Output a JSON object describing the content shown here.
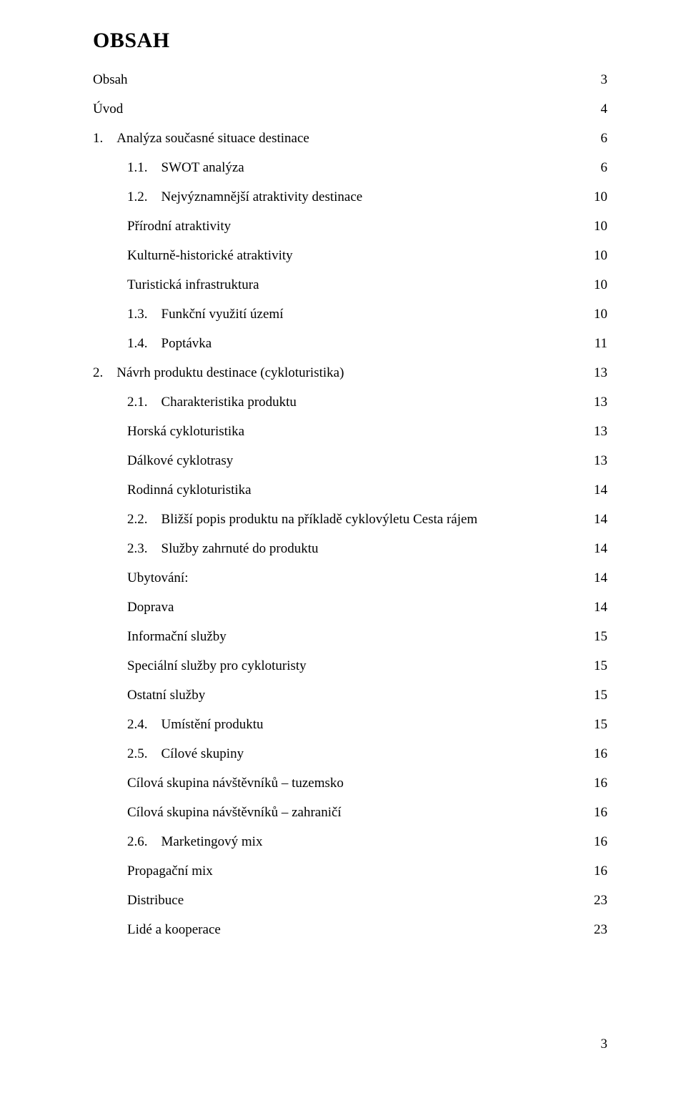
{
  "title": "OBSAH",
  "page_number": "3",
  "styling": {
    "background_color": "#ffffff",
    "text_color": "#000000",
    "font_family": "Times New Roman",
    "title_fontsize": 30,
    "body_fontsize": 19,
    "leader_char": "."
  },
  "entries": [
    {
      "indent": 0,
      "num": "",
      "label": "Obsah",
      "page": "3"
    },
    {
      "indent": 0,
      "num": "",
      "label": "Úvod",
      "page": "4"
    },
    {
      "indent": 0,
      "num": "1.",
      "label": "Analýza současné situace destinace",
      "page": "6"
    },
    {
      "indent": 1,
      "num": "1.1.",
      "label": "SWOT analýza",
      "page": "6"
    },
    {
      "indent": 1,
      "num": "1.2.",
      "label": "Nejvýznamnější atraktivity destinace",
      "page": "10"
    },
    {
      "indent": 2,
      "num": "",
      "label": "Přírodní atraktivity",
      "page": "10"
    },
    {
      "indent": 2,
      "num": "",
      "label": "Kulturně-historické atraktivity",
      "page": "10"
    },
    {
      "indent": 2,
      "num": "",
      "label": "Turistická infrastruktura",
      "page": "10"
    },
    {
      "indent": 1,
      "num": "1.3.",
      "label": "Funkční využití území",
      "page": "10"
    },
    {
      "indent": 1,
      "num": "1.4.",
      "label": "Poptávka",
      "page": "11"
    },
    {
      "indent": 0,
      "num": "2.",
      "label": "Návrh produktu destinace (cykloturistika)",
      "page": "13"
    },
    {
      "indent": 1,
      "num": "2.1.",
      "label": "Charakteristika produktu",
      "page": "13"
    },
    {
      "indent": 2,
      "num": "",
      "label": "Horská cykloturistika",
      "page": "13"
    },
    {
      "indent": 2,
      "num": "",
      "label": "Dálkové cyklotrasy",
      "page": "13"
    },
    {
      "indent": 2,
      "num": "",
      "label": "Rodinná cykloturistika",
      "page": "14"
    },
    {
      "indent": 1,
      "num": "2.2.",
      "label": "Bližší popis produktu na příkladě cyklovýletu Cesta rájem",
      "page": "14"
    },
    {
      "indent": 1,
      "num": "2.3.",
      "label": "Služby zahrnuté do produktu",
      "page": "14"
    },
    {
      "indent": 2,
      "num": "",
      "label": "Ubytování:",
      "page": "14"
    },
    {
      "indent": 2,
      "num": "",
      "label": "Doprava",
      "page": "14"
    },
    {
      "indent": 2,
      "num": "",
      "label": "Informační služby",
      "page": "15"
    },
    {
      "indent": 2,
      "num": "",
      "label": "Speciální služby pro cykloturisty",
      "page": "15"
    },
    {
      "indent": 2,
      "num": "",
      "label": "Ostatní služby",
      "page": "15"
    },
    {
      "indent": 1,
      "num": "2.4.",
      "label": "Umístění produktu",
      "page": "15"
    },
    {
      "indent": 1,
      "num": "2.5.",
      "label": "Cílové skupiny",
      "page": "16"
    },
    {
      "indent": 2,
      "num": "",
      "label": "Cílová skupina návštěvníků – tuzemsko",
      "page": "16"
    },
    {
      "indent": 2,
      "num": "",
      "label": "Cílová skupina návštěvníků – zahraničí",
      "page": "16"
    },
    {
      "indent": 1,
      "num": "2.6.",
      "label": "Marketingový mix",
      "page": "16"
    },
    {
      "indent": 2,
      "num": "",
      "label": "Propagační mix",
      "page": "16"
    },
    {
      "indent": 2,
      "num": "",
      "label": "Distribuce",
      "page": "23"
    },
    {
      "indent": 2,
      "num": "",
      "label": "Lidé a kooperace",
      "page": "23"
    }
  ]
}
